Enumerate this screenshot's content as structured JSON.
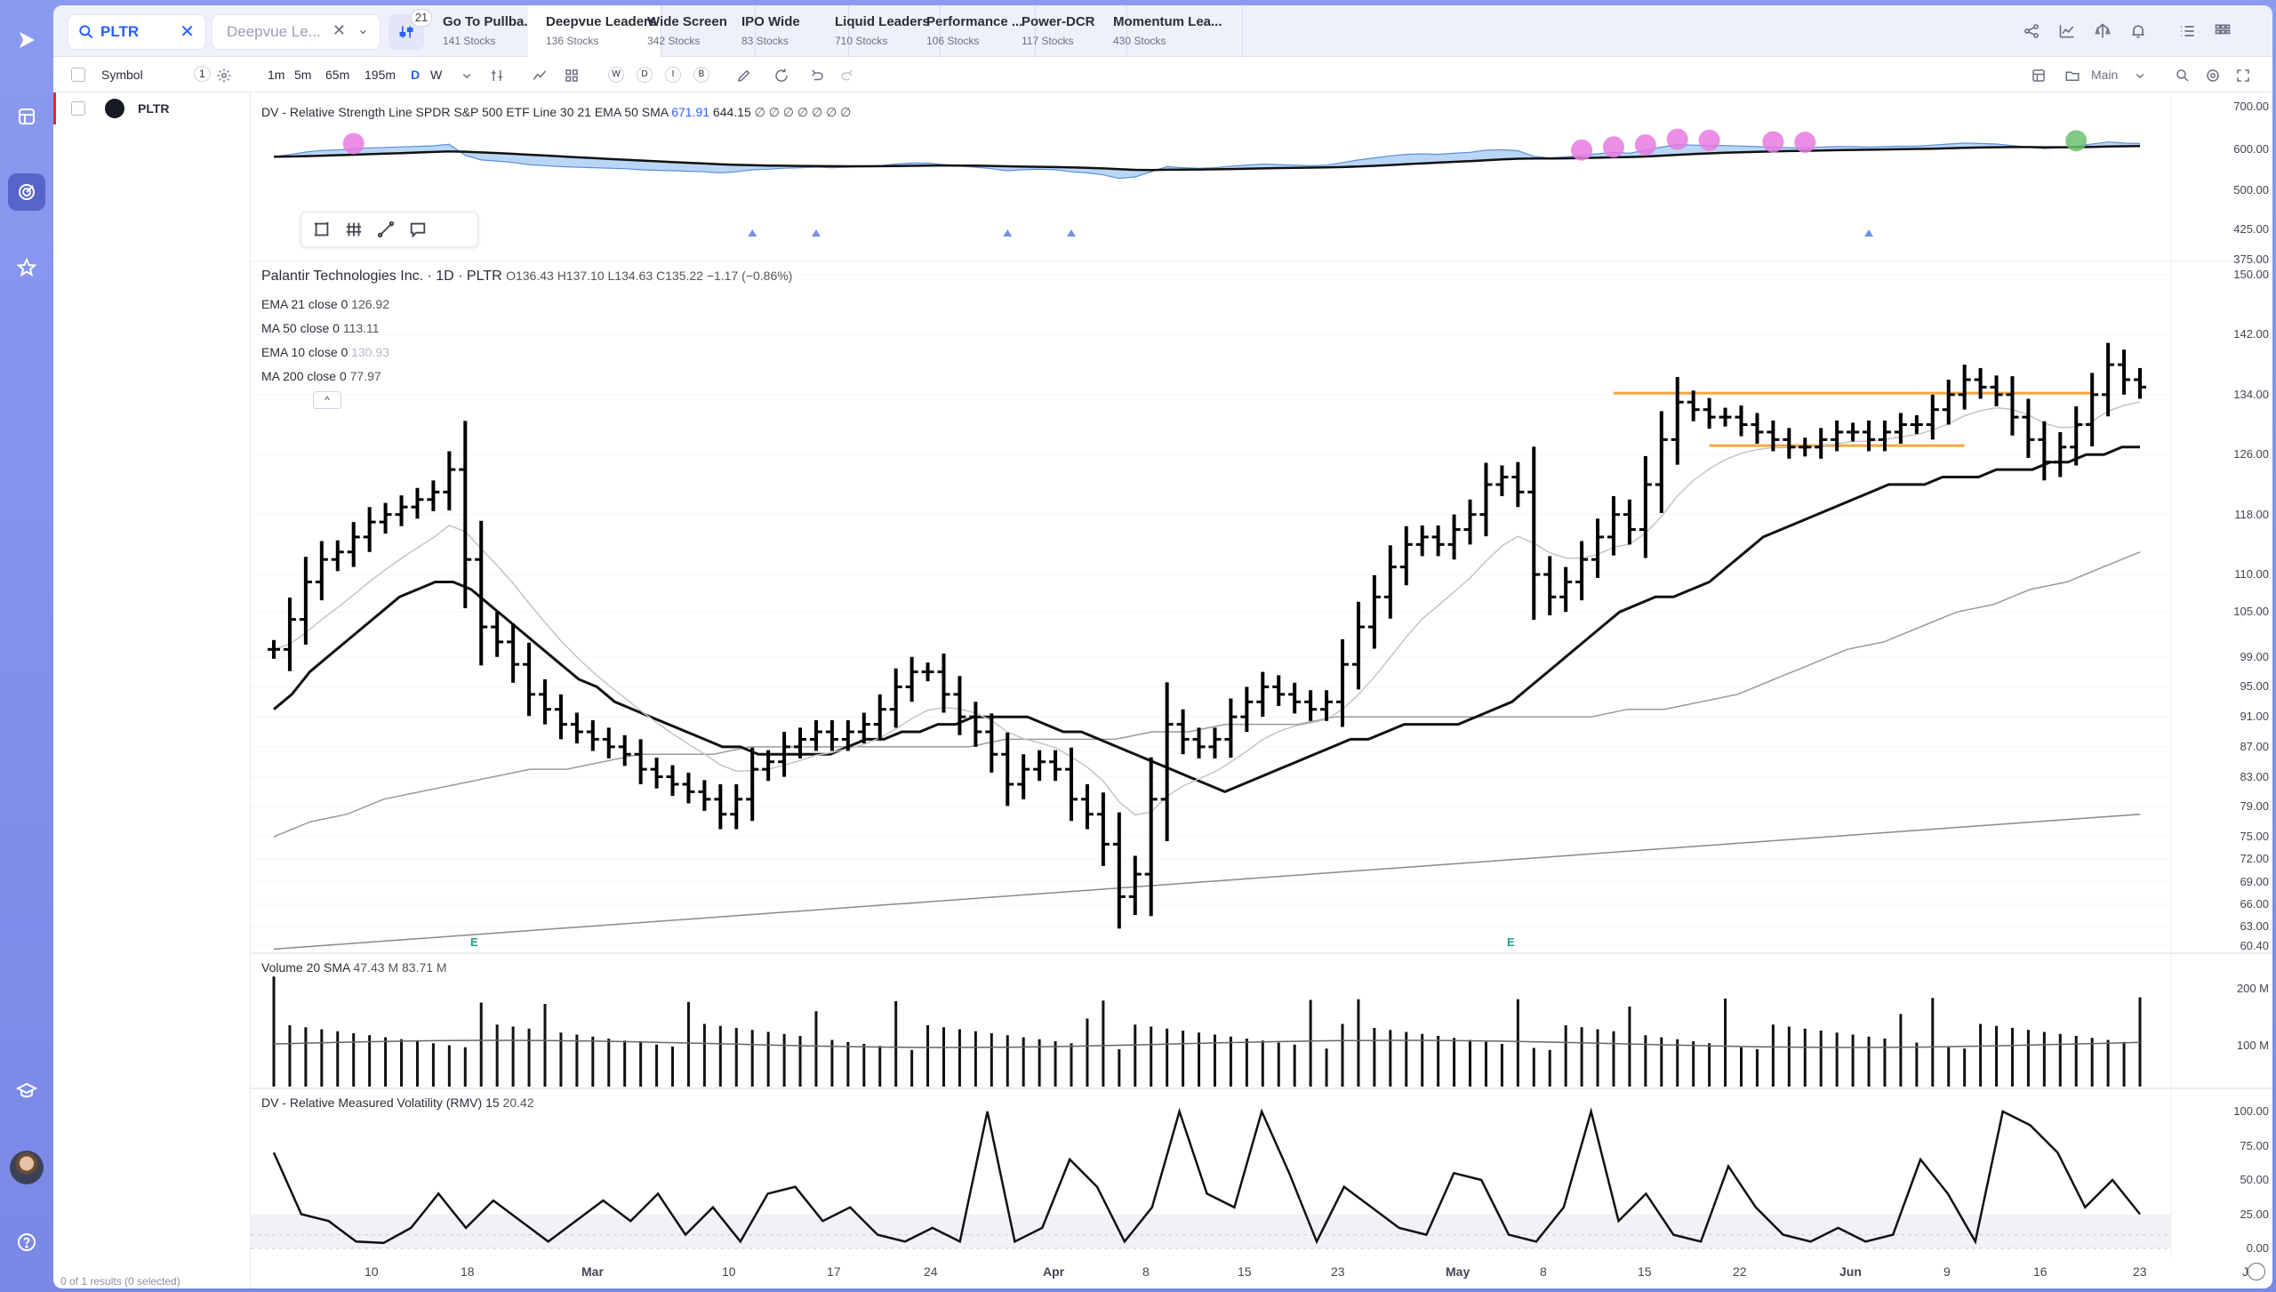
{
  "search": {
    "query": "PLTR"
  },
  "watchlist_select": {
    "label": "Deepvue Le...",
    "filter_count": "21"
  },
  "tabs": [
    {
      "title": "Go To Pullba...",
      "sub": "141 Stocks"
    },
    {
      "title": "Deepvue Leaders",
      "sub": "136 Stocks"
    },
    {
      "title": "Wide Screen",
      "sub": "342 Stocks"
    },
    {
      "title": "IPO Wide",
      "sub": "83 Stocks"
    },
    {
      "title": "Liquid Leaders",
      "sub": "710 Stocks"
    },
    {
      "title": "Performance ...",
      "sub": "106 Stocks"
    },
    {
      "title": "Power-DCR",
      "sub": "117 Stocks"
    },
    {
      "title": "Momentum Lea...",
      "sub": "430 Stocks"
    }
  ],
  "toolbar": {
    "symbol_header": "Symbol",
    "symbol_count": "1",
    "intervals": [
      "1m",
      "5m",
      "65m",
      "195m",
      "D",
      "W"
    ],
    "active_interval": "D",
    "chart_modes": [
      "W",
      "D",
      "I",
      "B"
    ],
    "layout_label": "Main"
  },
  "watchlist": {
    "rows": [
      {
        "symbol": "PLTR"
      }
    ],
    "footer": "0 of 1 results (0 selected)"
  },
  "rs_panel": {
    "legend": "DV - Relative Strength Line SPDR S&P 500 ETF Line 30 21 EMA 50 SMA",
    "value1": "671.91",
    "value2": "644.15",
    "tail": "∅ ∅ ∅ ∅ ∅ ∅ ∅",
    "axis": [
      "700.00",
      "600.00",
      "500.00",
      "425.00",
      "375.00"
    ]
  },
  "price_panel": {
    "title": "Palantir Technologies Inc. · 1D · PLTR",
    "ohlc": "O136.43  H137.10  L134.63  C135.22  −1.17 (−0.86%)",
    "mas": [
      {
        "label": "EMA 21 close 0",
        "value": "126.92"
      },
      {
        "label": "MA 50 close 0",
        "value": "113.11"
      },
      {
        "label": "EMA 10 close 0",
        "value": "130.93"
      },
      {
        "label": "MA 200 close 0",
        "value": "77.97"
      }
    ],
    "axis": [
      "150.00",
      "142.00",
      "134.00",
      "126.00",
      "118.00",
      "110.00",
      "105.00",
      "99.00",
      "95.00",
      "91.00",
      "87.00",
      "83.00",
      "79.00",
      "75.00",
      "72.00",
      "69.00",
      "66.00",
      "63.00",
      "60.40"
    ],
    "earnings_flag": "E"
  },
  "volume_panel": {
    "legend": "Volume 20 SMA",
    "v1": "47.43 M",
    "v2": "83.71 M",
    "axis": [
      "200 M",
      "100 M"
    ]
  },
  "rmv_panel": {
    "legend": "DV - Relative Measured Volatility (RMV) 15",
    "value": "20.42",
    "axis": [
      "100.00",
      "75.00",
      "50.00",
      "25.00",
      "0.00"
    ]
  },
  "time_axis": [
    {
      "label": "10",
      "bold": false
    },
    {
      "label": "18",
      "bold": false
    },
    {
      "label": "Mar",
      "bold": true
    },
    {
      "label": "10",
      "bold": false
    },
    {
      "label": "17",
      "bold": false
    },
    {
      "label": "24",
      "bold": false
    },
    {
      "label": "Apr",
      "bold": true
    },
    {
      "label": "8",
      "bold": false
    },
    {
      "label": "15",
      "bold": false
    },
    {
      "label": "23",
      "bold": false
    },
    {
      "label": "May",
      "bold": true
    },
    {
      "label": "8",
      "bold": false
    },
    {
      "label": "15",
      "bold": false
    },
    {
      "label": "22",
      "bold": false
    },
    {
      "label": "Jun",
      "bold": true
    },
    {
      "label": "9",
      "bold": false
    },
    {
      "label": "16",
      "bold": false
    },
    {
      "label": "23",
      "bold": false
    },
    {
      "label": "J",
      "bold": false
    }
  ],
  "chart_data": {
    "type": "ohlc",
    "closes": [
      100,
      104,
      109,
      112,
      113,
      115,
      117,
      118,
      119,
      120,
      121,
      124,
      112,
      103,
      101,
      98,
      94,
      92,
      90,
      89,
      88,
      87,
      86,
      84,
      83,
      82,
      81,
      80,
      78,
      80,
      84,
      85,
      87,
      88,
      89,
      88,
      89,
      90,
      92,
      95,
      97,
      97,
      94,
      91,
      89,
      86,
      82,
      84,
      85,
      84,
      80,
      78,
      74,
      67,
      70,
      80,
      90,
      88,
      87,
      88,
      91,
      93,
      95,
      94,
      93,
      92,
      93,
      98,
      103,
      107,
      111,
      114,
      115,
      114,
      116,
      118,
      122,
      123,
      121,
      110,
      107,
      109,
      112,
      115,
      118,
      116,
      122,
      128,
      133,
      132,
      131,
      131,
      130,
      129,
      128,
      127,
      127,
      128,
      129,
      129,
      128,
      129,
      130,
      130,
      132,
      134,
      136,
      135,
      134,
      131,
      128,
      125,
      127,
      130,
      134,
      138,
      136,
      135
    ],
    "ma21": [
      92,
      94,
      97,
      99,
      101,
      103,
      105,
      107,
      108,
      109,
      109,
      108,
      106,
      104,
      102,
      100,
      98,
      96,
      95,
      93,
      92,
      91,
      90,
      89,
      88,
      87,
      87,
      86,
      86,
      86,
      86,
      86,
      87,
      88,
      88,
      89,
      89,
      90,
      90,
      91,
      91,
      91,
      91,
      90,
      89,
      89,
      88,
      87,
      86,
      85,
      84,
      83,
      82,
      81,
      82,
      83,
      84,
      85,
      86,
      87,
      88,
      88,
      89,
      90,
      90,
      90,
      90,
      91,
      92,
      93,
      95,
      97,
      99,
      101,
      103,
      105,
      106,
      107,
      107,
      108,
      109,
      111,
      113,
      115,
      116,
      117,
      118,
      119,
      120,
      121,
      122,
      122,
      122,
      123,
      123,
      123,
      124,
      124,
      124,
      125,
      125,
      126,
      126,
      127,
      127
    ],
    "ma50": [
      75,
      77,
      78,
      80,
      81,
      82,
      83,
      84,
      84,
      85,
      86,
      86,
      86,
      87,
      87,
      87,
      87,
      87,
      87,
      87,
      88,
      88,
      88,
      88,
      89,
      89,
      90,
      90,
      90,
      91,
      91,
      91,
      91,
      91,
      91,
      91,
      91,
      92,
      92,
      93,
      94,
      96,
      98,
      100,
      101,
      103,
      105,
      106,
      108,
      109,
      111,
      113
    ],
    "ma200": [
      60,
      61,
      62,
      63,
      64,
      65,
      66,
      67,
      68,
      69,
      70,
      71,
      72,
      73,
      74,
      75,
      76,
      77,
      78
    ],
    "volume_scale": "0-220 M",
    "rmv": [
      70,
      25,
      20,
      5,
      4,
      15,
      40,
      15,
      35,
      20,
      5,
      20,
      35,
      20,
      40,
      10,
      30,
      5,
      40,
      45,
      20,
      30,
      10,
      5,
      15,
      5,
      100,
      5,
      15,
      65,
      45,
      5,
      30,
      100,
      40,
      30,
      100,
      55,
      5,
      45,
      30,
      15,
      10,
      55,
      50,
      10,
      5,
      30,
      100,
      20,
      40,
      10,
      5,
      60,
      30,
      10,
      5,
      15,
      5,
      10,
      65,
      40,
      5,
      100,
      90,
      70,
      30,
      50,
      25
    ]
  }
}
